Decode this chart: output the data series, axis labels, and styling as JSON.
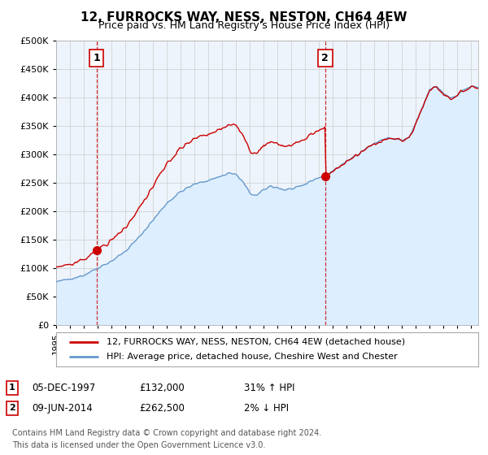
{
  "title": "12, FURROCKS WAY, NESS, NESTON, CH64 4EW",
  "subtitle": "Price paid vs. HM Land Registry's House Price Index (HPI)",
  "ylim": [
    0,
    500000
  ],
  "yticks": [
    0,
    50000,
    100000,
    150000,
    200000,
    250000,
    300000,
    350000,
    400000,
    450000,
    500000
  ],
  "xlim_start": 1995.0,
  "xlim_end": 2025.5,
  "sale1_date": 1997.92,
  "sale1_price": 132000,
  "sale1_label": "1",
  "sale1_text": "05-DEC-1997",
  "sale1_price_text": "£132,000",
  "sale1_hpi_text": "31% ↑ HPI",
  "sale2_date": 2014.44,
  "sale2_price": 262500,
  "sale2_label": "2",
  "sale2_text": "09-JUN-2014",
  "sale2_price_text": "£262,500",
  "sale2_hpi_text": "2% ↓ HPI",
  "legend_line1": "12, FURROCKS WAY, NESS, NESTON, CH64 4EW (detached house)",
  "legend_line2": "HPI: Average price, detached house, Cheshire West and Chester",
  "footer1": "Contains HM Land Registry data © Crown copyright and database right 2024.",
  "footer2": "This data is licensed under the Open Government Licence v3.0.",
  "price_color": "#cc0000",
  "hpi_color": "#6699cc",
  "hpi_fill_color": "#ddeeff",
  "sale_marker_color": "#cc0000",
  "dashed_line_color": "#cc0000",
  "background_color": "#ffffff",
  "grid_color": "#cccccc",
  "chart_bg_color": "#eef4fb"
}
